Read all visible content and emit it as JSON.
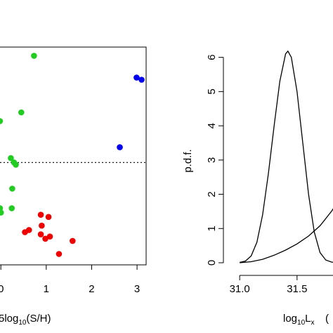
{
  "chart_data": [
    {
      "type": "scatter",
      "title": "",
      "xlabel": "5log",
      "xlabel_sub": "10",
      "xlabel_suffix": "(S/H)",
      "ylabel": "",
      "xlim": [
        -0.05,
        3.2
      ],
      "ylim": [
        0,
        1
      ],
      "x_ticks": [
        0,
        1,
        2,
        3
      ],
      "x_tick_labels": [
        "0",
        "1",
        "2",
        "3"
      ],
      "reference_line": {
        "style": "dotted",
        "y": 0.47
      },
      "series": [
        {
          "color": "#22cc22",
          "points": [
            {
              "x": 0.73,
              "y": 0.96
            },
            {
              "x": 0.45,
              "y": 0.7
            },
            {
              "x": -0.02,
              "y": 0.66
            },
            {
              "x": 0.22,
              "y": 0.49
            },
            {
              "x": 0.29,
              "y": 0.47
            },
            {
              "x": 0.33,
              "y": 0.46
            },
            {
              "x": 0.25,
              "y": 0.35
            },
            {
              "x": -0.02,
              "y": 0.26
            },
            {
              "x": 0.24,
              "y": 0.26
            },
            {
              "x": 0.0,
              "y": 0.24
            }
          ]
        },
        {
          "color": "#0000ee",
          "points": [
            {
              "x": 2.99,
              "y": 0.86
            },
            {
              "x": 3.1,
              "y": 0.85
            },
            {
              "x": 2.62,
              "y": 0.54
            }
          ]
        },
        {
          "color": "#ee0000",
          "points": [
            {
              "x": 0.88,
              "y": 0.23
            },
            {
              "x": 1.05,
              "y": 0.22
            },
            {
              "x": 0.9,
              "y": 0.18
            },
            {
              "x": 0.62,
              "y": 0.16
            },
            {
              "x": 1.08,
              "y": 0.13
            },
            {
              "x": 0.53,
              "y": 0.15
            },
            {
              "x": 0.88,
              "y": 0.14
            },
            {
              "x": 0.98,
              "y": 0.12
            },
            {
              "x": 1.58,
              "y": 0.11
            },
            {
              "x": 1.28,
              "y": 0.05
            }
          ]
        }
      ]
    },
    {
      "type": "line",
      "title": "",
      "xlabel": "log",
      "xlabel_sub": "10",
      "xlabel_suffix": "L",
      "xlabel_suffix_sub": "x",
      "ylabel": "p.d.f.",
      "xlim": [
        30.95,
        31.85
      ],
      "ylim": [
        0,
        6.3
      ],
      "x_ticks": [
        31.0,
        31.5
      ],
      "x_tick_labels": [
        "31.0",
        "31.5"
      ],
      "y_ticks": [
        0,
        1,
        2,
        3,
        4,
        5,
        6
      ],
      "y_tick_labels": [
        "0",
        "1",
        "2",
        "3",
        "4",
        "5",
        "6"
      ],
      "series": [
        {
          "color": "#000000",
          "points": [
            [
              31.0,
              0.01
            ],
            [
              31.05,
              0.05
            ],
            [
              31.1,
              0.2
            ],
            [
              31.15,
              0.6
            ],
            [
              31.2,
              1.4
            ],
            [
              31.25,
              2.6
            ],
            [
              31.3,
              4.0
            ],
            [
              31.35,
              5.3
            ],
            [
              31.4,
              6.1
            ],
            [
              31.42,
              6.18
            ],
            [
              31.45,
              6.0
            ],
            [
              31.5,
              5.0
            ],
            [
              31.55,
              3.5
            ],
            [
              31.6,
              2.0
            ],
            [
              31.65,
              0.9
            ],
            [
              31.7,
              0.3
            ],
            [
              31.75,
              0.08
            ],
            [
              31.8,
              0.02
            ],
            [
              31.85,
              0.0
            ]
          ]
        },
        {
          "color": "#000000",
          "points": [
            [
              31.0,
              0.0
            ],
            [
              31.1,
              0.03
            ],
            [
              31.2,
              0.1
            ],
            [
              31.3,
              0.22
            ],
            [
              31.4,
              0.37
            ],
            [
              31.5,
              0.55
            ],
            [
              31.6,
              0.78
            ],
            [
              31.7,
              1.08
            ],
            [
              31.8,
              1.5
            ],
            [
              31.85,
              1.75
            ]
          ]
        }
      ]
    }
  ],
  "legend_fragment_glyph": "("
}
